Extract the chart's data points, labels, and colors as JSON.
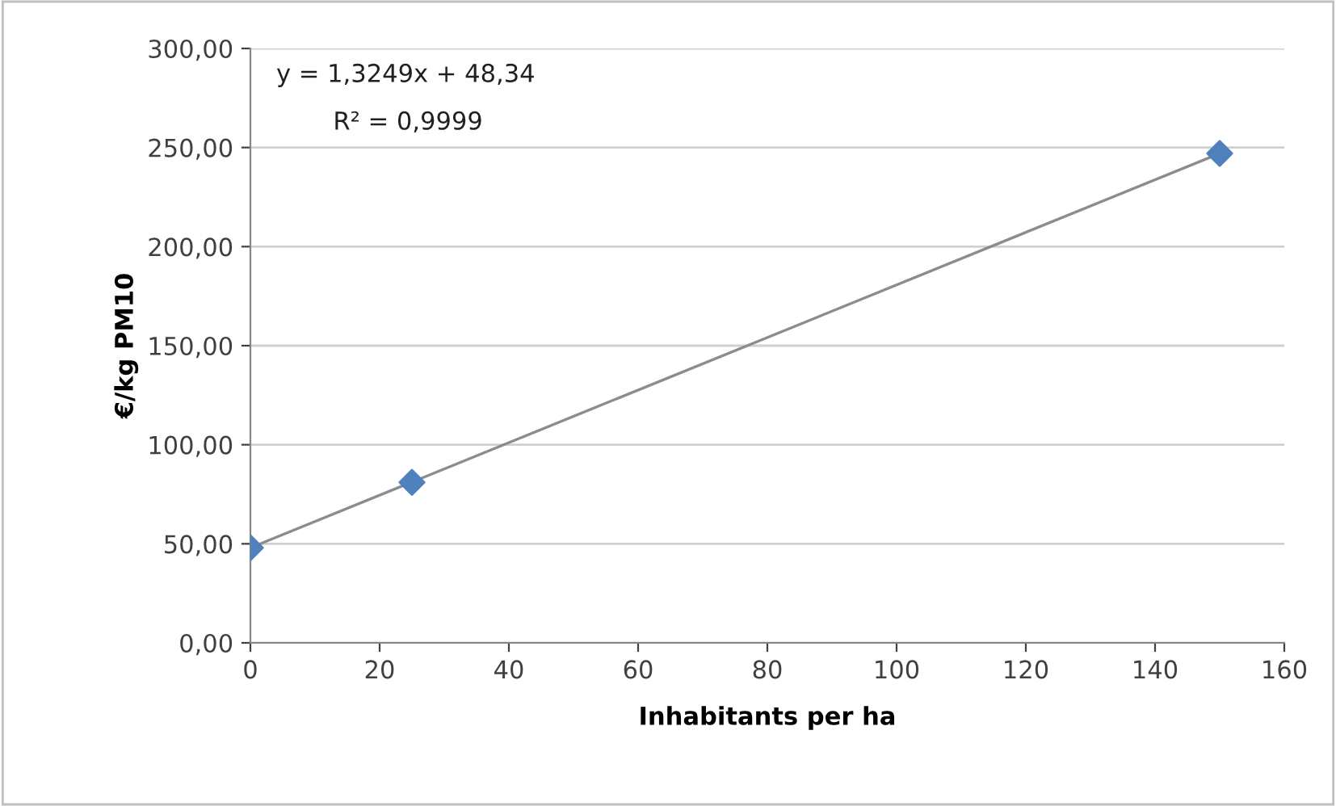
{
  "chart_data": {
    "type": "scatter",
    "xlabel": "Inhabitants per ha",
    "ylabel": "€/kg PM10",
    "annotations": [
      "y = 1,3249x + 48,34",
      "R² = 0,9999"
    ],
    "series": [
      {
        "color": "#4f81bd",
        "marker": "diamond",
        "x": [
          0,
          25,
          150
        ],
        "values": [
          48,
          81,
          247
        ]
      },
      {
        "type": "line",
        "color": "#8c8c8c",
        "marker": "none",
        "line_style": "solid",
        "x": [
          0,
          150
        ],
        "values": [
          48,
          247
        ]
      }
    ],
    "xlim": [
      0,
      160
    ],
    "xticks": [
      0,
      20,
      40,
      60,
      80,
      100,
      120,
      140,
      160
    ],
    "ylim": [
      0,
      300
    ],
    "yticks": [
      {
        "value": 0,
        "label": "0,00"
      },
      {
        "value": 50,
        "label": "50,00"
      },
      {
        "value": 100,
        "label": "100,00"
      },
      {
        "value": 150,
        "label": "150,00"
      },
      {
        "value": 200,
        "label": "200,00"
      },
      {
        "value": 250,
        "label": "250,00"
      },
      {
        "value": 300,
        "label": "300,00"
      }
    ],
    "grid": "y",
    "legend": false
  }
}
